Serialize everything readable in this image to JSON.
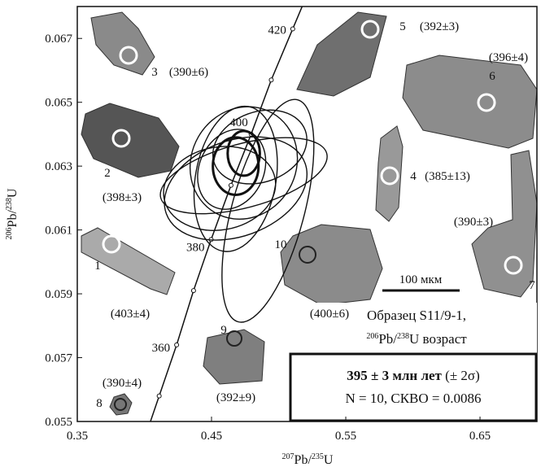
{
  "chart_data": {
    "type": "concordia",
    "xlabel_parts": [
      "207",
      "Pb/",
      "235",
      "U"
    ],
    "ylabel_parts": [
      "206",
      "Pb/",
      "238",
      "U"
    ],
    "xlim": [
      0.35,
      0.6924
    ],
    "ylim": [
      0.055,
      0.068
    ],
    "xticks": [
      0.35,
      0.45,
      0.55,
      0.65
    ],
    "yticks": [
      0.055,
      0.057,
      0.059,
      0.061,
      0.063,
      0.065,
      0.067
    ],
    "concordia": {
      "age_labels": [
        null,
        360,
        null,
        380,
        null,
        400,
        null,
        420
      ],
      "x": [
        0.411,
        0.424,
        0.4366,
        0.4497,
        0.4645,
        0.4795,
        0.4945,
        0.5105
      ],
      "y": [
        0.0558,
        0.0574,
        0.0591,
        0.0607,
        0.0624,
        0.064,
        0.0657,
        0.0673
      ]
    },
    "ellipses": {
      "x": [
        0.474,
        0.468,
        0.474,
        0.468,
        0.492,
        0.468,
        0.474,
        0.486,
        0.456,
        0.465
      ],
      "y": [
        0.0627,
        0.0623,
        0.0631,
        0.0626,
        0.0616,
        0.063,
        0.0634,
        0.0636,
        0.0623,
        0.0629
      ],
      "x_err": [
        0.064,
        0.055,
        0.039,
        0.03,
        0.027,
        0.017,
        0.012,
        0.036,
        0.042,
        0.024
      ],
      "y_err": [
        0.001,
        0.0015,
        0.0018,
        0.0023,
        0.0036,
        0.0009,
        0.0007,
        0.0011,
        0.0013,
        0.0013
      ],
      "angle": [
        -15,
        -20,
        30,
        10,
        15,
        0,
        0,
        -20,
        -10,
        25
      ],
      "bold": [
        false,
        false,
        false,
        false,
        false,
        true,
        true,
        false,
        false,
        false
      ],
      "color": "#111111"
    },
    "grains": [
      {
        "number": 1,
        "age": "(403±4)"
      },
      {
        "number": 2,
        "age": "(398±3)"
      },
      {
        "number": 3,
        "age": "(390±6)"
      },
      {
        "number": 4,
        "age": "(385±13)"
      },
      {
        "number": 5,
        "age": "(392±3)"
      },
      {
        "number": 6,
        "age": "(396±4)"
      },
      {
        "number": 7,
        "age": "(390±3)"
      },
      {
        "number": 8,
        "age": "(390±4)"
      },
      {
        "number": 9,
        "age": "(392±9)"
      },
      {
        "number": 10,
        "age": "(400±6)"
      }
    ],
    "scale_bar": "100 мкм",
    "result": {
      "sample": "Образец S11/9-1,",
      "method_parts": [
        "206",
        "Pb/",
        "238",
        "U возраст"
      ],
      "age": "395 ± 3 млн лет",
      "sigma": "(± 2σ)",
      "stats": "N = 10, СКВО = 0.0086"
    }
  }
}
